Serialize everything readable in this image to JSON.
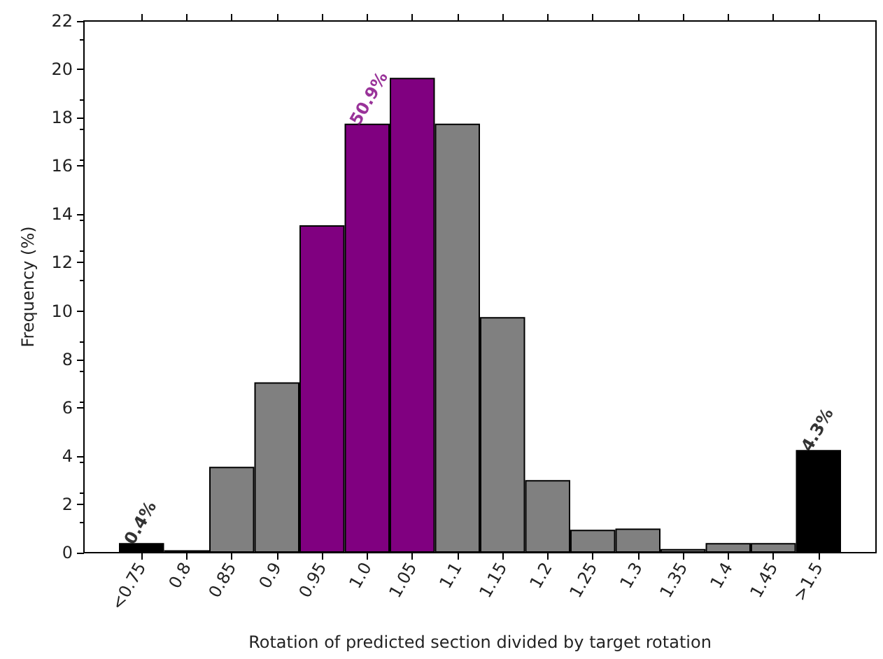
{
  "chart_data": {
    "type": "bar",
    "xlabel": "Rotation of predicted section divided by target rotation",
    "ylabel": "Frequency (%)",
    "categories": [
      "<0.75",
      "0.8",
      "0.85",
      "0.9",
      "0.95",
      "1.0",
      "1.05",
      "1.1",
      "1.15",
      "1.2",
      "1.25",
      "1.3",
      "1.35",
      "1.4",
      "1.45",
      ">1.5"
    ],
    "values": [
      0.4,
      0.1,
      3.55,
      7.05,
      13.55,
      17.75,
      19.65,
      17.75,
      9.75,
      3.0,
      0.95,
      1.0,
      0.15,
      0.4,
      0.4,
      4.25
    ],
    "colors": [
      "#000000",
      "#808080",
      "#808080",
      "#808080",
      "#800080",
      "#800080",
      "#800080",
      "#808080",
      "#808080",
      "#808080",
      "#808080",
      "#808080",
      "#808080",
      "#808080",
      "#808080",
      "#000000"
    ],
    "ylim": [
      0,
      22
    ],
    "yticks": [
      0,
      2,
      4,
      6,
      8,
      10,
      12,
      14,
      16,
      18,
      20,
      22
    ],
    "annotations": [
      {
        "text": "0.4%",
        "x": "<0.75",
        "y": 0.4
      },
      {
        "text": "50.9%",
        "x": "1.0",
        "y": 17.75
      },
      {
        "text": "4.3%",
        "x": ">1.5",
        "y": 4.25
      }
    ],
    "grid": false
  }
}
